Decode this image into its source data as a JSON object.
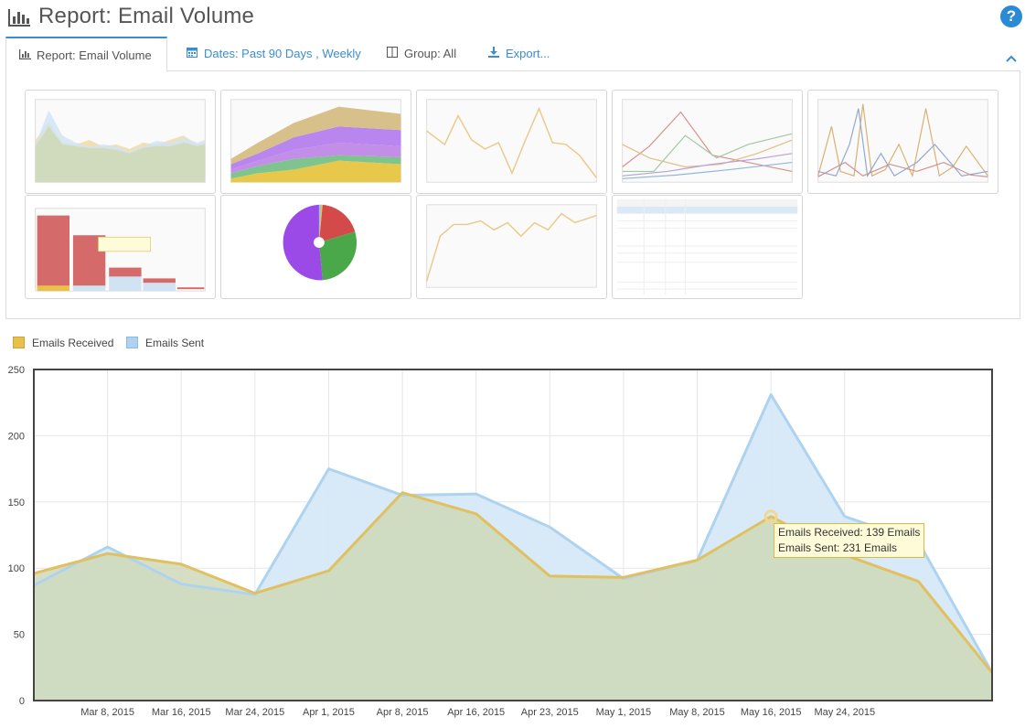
{
  "header": {
    "title": "Report: Email Volume",
    "title_icon": "bar-chart-icon",
    "help_icon": "question-circle-icon"
  },
  "tabs": [
    {
      "label": "Report: Email Volume",
      "icon": "bar-chart-icon"
    },
    {
      "label": "Dates: Past 90 Days , Weekly",
      "icon": "calendar-icon"
    },
    {
      "label": "Group: All",
      "icon": "columns-icon"
    },
    {
      "label": "Export...",
      "icon": "download-icon"
    }
  ],
  "colors": {
    "received_fill": "#cfd9b8",
    "received_line": "#e0c060",
    "sent_fill": "#d6e8f7",
    "sent_line": "#aed3f0",
    "accent": "#3a8ed0"
  },
  "tooltip": {
    "received": "Emails Received: 139 Emails",
    "sent": "Emails Sent: 231 Emails"
  },
  "chart_data": {
    "type": "area",
    "x_ticks": [
      "Mar 8, 2015",
      "Mar 16, 2015",
      "Mar 24, 2015",
      "Apr 1, 2015",
      "Apr 8, 2015",
      "Apr 16, 2015",
      "Apr 23, 2015",
      "May 1, 2015",
      "May 8, 2015",
      "May 16, 2015",
      "May 24, 2015"
    ],
    "ylim": [
      0,
      250
    ],
    "y_ticks": [
      0,
      50,
      100,
      150,
      200,
      250
    ],
    "grid": true,
    "legend": "top-left",
    "series": [
      {
        "name": "Emails Received",
        "color": "#e8c04a",
        "values": [
          96,
          111,
          103,
          81,
          98,
          157,
          141,
          94,
          93,
          106,
          139,
          110,
          90,
          21
        ]
      },
      {
        "name": "Emails Sent",
        "color": "#aed3f0",
        "values": [
          87,
          116,
          88,
          80,
          175,
          155,
          156,
          131,
          92,
          106,
          231,
          139,
          120,
          21
        ]
      }
    ],
    "highlight": {
      "index": 10,
      "received": 139,
      "sent": 231
    }
  }
}
